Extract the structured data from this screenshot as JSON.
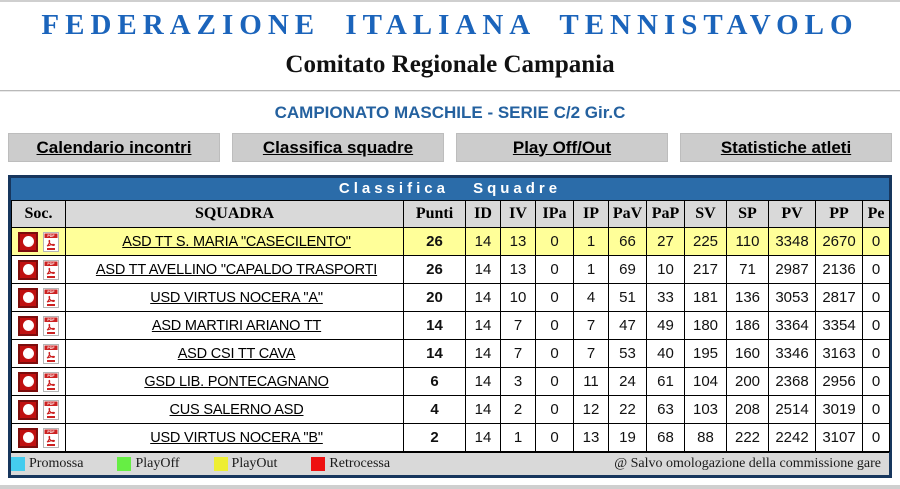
{
  "page": {
    "title": "FEDERAZIONE ITALIANA TENNISTAVOLO",
    "subtitle": "Comitato Regionale Campania",
    "championship": "CAMPIONATO MASCHILE - SERIE C/2 Gir.C"
  },
  "nav": {
    "items": [
      {
        "label": "Calendario incontri"
      },
      {
        "label": "Classifica squadre"
      },
      {
        "label": "Play Off/Out"
      },
      {
        "label": "Statistiche atleti"
      }
    ]
  },
  "table": {
    "title": "Classifica Squadre",
    "columns": [
      "Soc.",
      "SQUADRA",
      "Punti",
      "ID",
      "IV",
      "IPa",
      "IP",
      "PaV",
      "PaP",
      "SV",
      "SP",
      "PV",
      "PP",
      "Pe"
    ],
    "icons": {
      "club": "club-logo-icon",
      "pdf": "pdf-icon"
    },
    "rows": [
      {
        "name": "ASD TT S. MARIA \"CASECILENTO\"",
        "values": [
          26,
          14,
          13,
          0,
          1,
          66,
          27,
          225,
          110,
          3348,
          2670,
          0
        ],
        "highlight": true
      },
      {
        "name": "ASD TT AVELLINO \"CAPALDO TRASPORTI",
        "values": [
          26,
          14,
          13,
          0,
          1,
          69,
          10,
          217,
          71,
          2987,
          2136,
          0
        ],
        "highlight": false
      },
      {
        "name": "USD VIRTUS NOCERA \"A\"",
        "values": [
          20,
          14,
          10,
          0,
          4,
          51,
          33,
          181,
          136,
          3053,
          2817,
          0
        ],
        "highlight": false
      },
      {
        "name": "ASD MARTIRI ARIANO TT",
        "values": [
          14,
          14,
          7,
          0,
          7,
          47,
          49,
          180,
          186,
          3364,
          3354,
          0
        ],
        "highlight": false
      },
      {
        "name": "ASD CSI TT CAVA",
        "values": [
          14,
          14,
          7,
          0,
          7,
          53,
          40,
          195,
          160,
          3346,
          3163,
          0
        ],
        "highlight": false
      },
      {
        "name": "GSD LIB. PONTECAGNANO",
        "values": [
          6,
          14,
          3,
          0,
          11,
          24,
          61,
          104,
          200,
          2368,
          2956,
          0
        ],
        "highlight": false
      },
      {
        "name": "CUS SALERNO ASD",
        "values": [
          4,
          14,
          2,
          0,
          12,
          22,
          63,
          103,
          208,
          2514,
          3019,
          0
        ],
        "highlight": false
      },
      {
        "name": "USD VIRTUS NOCERA \"B\"",
        "values": [
          2,
          14,
          1,
          0,
          13,
          19,
          68,
          88,
          222,
          2242,
          3107,
          0
        ],
        "highlight": false
      }
    ]
  },
  "legend": {
    "items": [
      {
        "label": "Promossa",
        "color": "#44CCEE"
      },
      {
        "label": "PlayOff",
        "color": "#66EE44"
      },
      {
        "label": "PlayOut",
        "color": "#EEEE33"
      },
      {
        "label": "Retrocessa",
        "color": "#EE1111"
      }
    ],
    "footnote": "@ Salvo omologazione della commissione gare"
  },
  "colors": {
    "title_blue": "#1B64BB",
    "championship_blue": "#24619F",
    "titlebar_blue": "#2B6CA9",
    "table_border_navy": "#17365D",
    "highlight_yellow": "#FFFF99",
    "nav_gray": "#CCCCCC",
    "header_gray": "#D9D9D9"
  }
}
